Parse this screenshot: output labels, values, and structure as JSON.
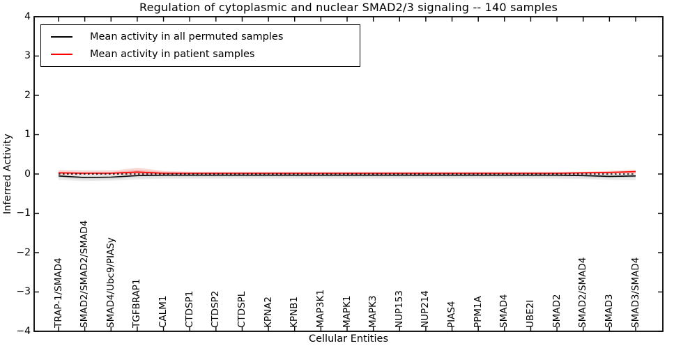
{
  "figure": {
    "title": "Regulation of cytoplasmic and nuclear SMAD2/3 signaling -- 140 samples"
  },
  "legend": {
    "entries": [
      {
        "label": "Mean activity in all permuted samples",
        "color": "#000000"
      },
      {
        "label": "Mean activity in patient samples",
        "color": "#ff0000"
      }
    ]
  },
  "chart_data": {
    "type": "line",
    "title": "Regulation of cytoplasmic and nuclear SMAD2/3 signaling -- 140 samples",
    "xlabel": "Cellular Entities",
    "ylabel": "Inferred Activity",
    "ylim": [
      -4,
      4
    ],
    "ytick_values": [
      4,
      3,
      2,
      1,
      0,
      -1,
      -2,
      -3,
      -4
    ],
    "ytick_labels": [
      "4",
      "3",
      "2",
      "1",
      "0",
      "−1",
      "−2",
      "−3",
      "−4"
    ],
    "grid": false,
    "legend_position": "upper left",
    "reference_line": {
      "y": 0,
      "style": "dotted",
      "color": "#000000"
    },
    "categories": [
      "TRAP-1/SMAD4",
      "SMAD2/SMAD2/SMAD4",
      "SMAD4/Ubc9/PIASy",
      "TGFBRAP1",
      "CALM1",
      "CTDSP1",
      "CTDSP2",
      "CTDSPL",
      "KPNA2",
      "KPNB1",
      "MAP3K1",
      "MAPK1",
      "MAPK3",
      "NUP153",
      "NUP214",
      "PIAS4",
      "PPM1A",
      "SMAD4",
      "UBE2I",
      "SMAD2",
      "SMAD2/SMAD4",
      "SMAD3",
      "SMAD3/SMAD4"
    ],
    "series": [
      {
        "name": "Mean activity in all permuted samples",
        "color": "#000000",
        "style": "solid",
        "values": [
          -0.05,
          -0.09,
          -0.08,
          -0.04,
          -0.03,
          -0.03,
          -0.03,
          -0.03,
          -0.03,
          -0.03,
          -0.03,
          -0.03,
          -0.03,
          -0.03,
          -0.03,
          -0.03,
          -0.03,
          -0.03,
          -0.03,
          -0.03,
          -0.04,
          -0.06,
          -0.05
        ]
      },
      {
        "name": "Mean activity in patient samples",
        "color": "#ff0000",
        "style": "solid",
        "values": [
          0.03,
          0.02,
          0.02,
          0.05,
          0.02,
          0.02,
          0.02,
          0.02,
          0.02,
          0.02,
          0.02,
          0.02,
          0.02,
          0.02,
          0.02,
          0.02,
          0.02,
          0.02,
          0.02,
          0.02,
          0.03,
          0.04,
          0.06
        ]
      }
    ],
    "bands": [
      {
        "name": "permuted-outer",
        "color": "#ebebeb",
        "upper": [
          0.11,
          0.1,
          0.1,
          0.08,
          0.07,
          0.06,
          0.06,
          0.06,
          0.06,
          0.06,
          0.06,
          0.06,
          0.06,
          0.06,
          0.06,
          0.06,
          0.06,
          0.06,
          0.06,
          0.06,
          0.06,
          0.06,
          0.07
        ],
        "lower": [
          -0.15,
          -0.18,
          -0.17,
          -0.14,
          -0.12,
          -0.12,
          -0.12,
          -0.12,
          -0.12,
          -0.12,
          -0.12,
          -0.12,
          -0.12,
          -0.12,
          -0.12,
          -0.12,
          -0.12,
          -0.12,
          -0.12,
          -0.12,
          -0.13,
          -0.15,
          -0.16
        ]
      },
      {
        "name": "permuted-inner",
        "color": "#dcdcdc",
        "upper": [
          -0.01,
          -0.05,
          -0.04,
          0.0,
          0.01,
          0.01,
          0.01,
          0.01,
          0.01,
          0.01,
          0.01,
          0.01,
          0.01,
          0.01,
          0.01,
          0.01,
          0.01,
          0.01,
          0.01,
          0.01,
          0.0,
          -0.02,
          -0.01
        ],
        "lower": [
          -0.1,
          -0.14,
          -0.13,
          -0.09,
          -0.08,
          -0.08,
          -0.08,
          -0.08,
          -0.08,
          -0.08,
          -0.08,
          -0.08,
          -0.08,
          -0.08,
          -0.08,
          -0.08,
          -0.08,
          -0.08,
          -0.08,
          -0.08,
          -0.09,
          -0.11,
          -0.1
        ]
      },
      {
        "name": "patient-outer",
        "color": "#fad7d7",
        "upper": [
          0.1,
          0.07,
          0.08,
          0.16,
          0.08,
          0.05,
          0.05,
          0.05,
          0.05,
          0.05,
          0.05,
          0.05,
          0.05,
          0.05,
          0.05,
          0.05,
          0.05,
          0.05,
          0.05,
          0.05,
          0.06,
          0.08,
          0.11
        ],
        "lower": [
          -0.03,
          -0.02,
          -0.02,
          -0.03,
          -0.02,
          -0.01,
          -0.01,
          -0.01,
          -0.01,
          -0.01,
          -0.01,
          -0.01,
          -0.01,
          -0.01,
          -0.01,
          -0.01,
          -0.01,
          -0.01,
          -0.01,
          -0.01,
          -0.01,
          0.0,
          0.01
        ]
      },
      {
        "name": "patient-inner",
        "color": "#f5b0b0",
        "upper": [
          0.06,
          0.05,
          0.05,
          0.1,
          0.05,
          0.04,
          0.04,
          0.04,
          0.04,
          0.04,
          0.04,
          0.04,
          0.04,
          0.04,
          0.04,
          0.04,
          0.04,
          0.04,
          0.04,
          0.04,
          0.05,
          0.06,
          0.08
        ],
        "lower": [
          0.0,
          0.0,
          0.0,
          0.01,
          0.0,
          0.0,
          0.0,
          0.0,
          0.0,
          0.0,
          0.0,
          0.0,
          0.0,
          0.0,
          0.0,
          0.0,
          0.0,
          0.0,
          0.0,
          0.0,
          0.01,
          0.02,
          0.03
        ]
      }
    ]
  }
}
